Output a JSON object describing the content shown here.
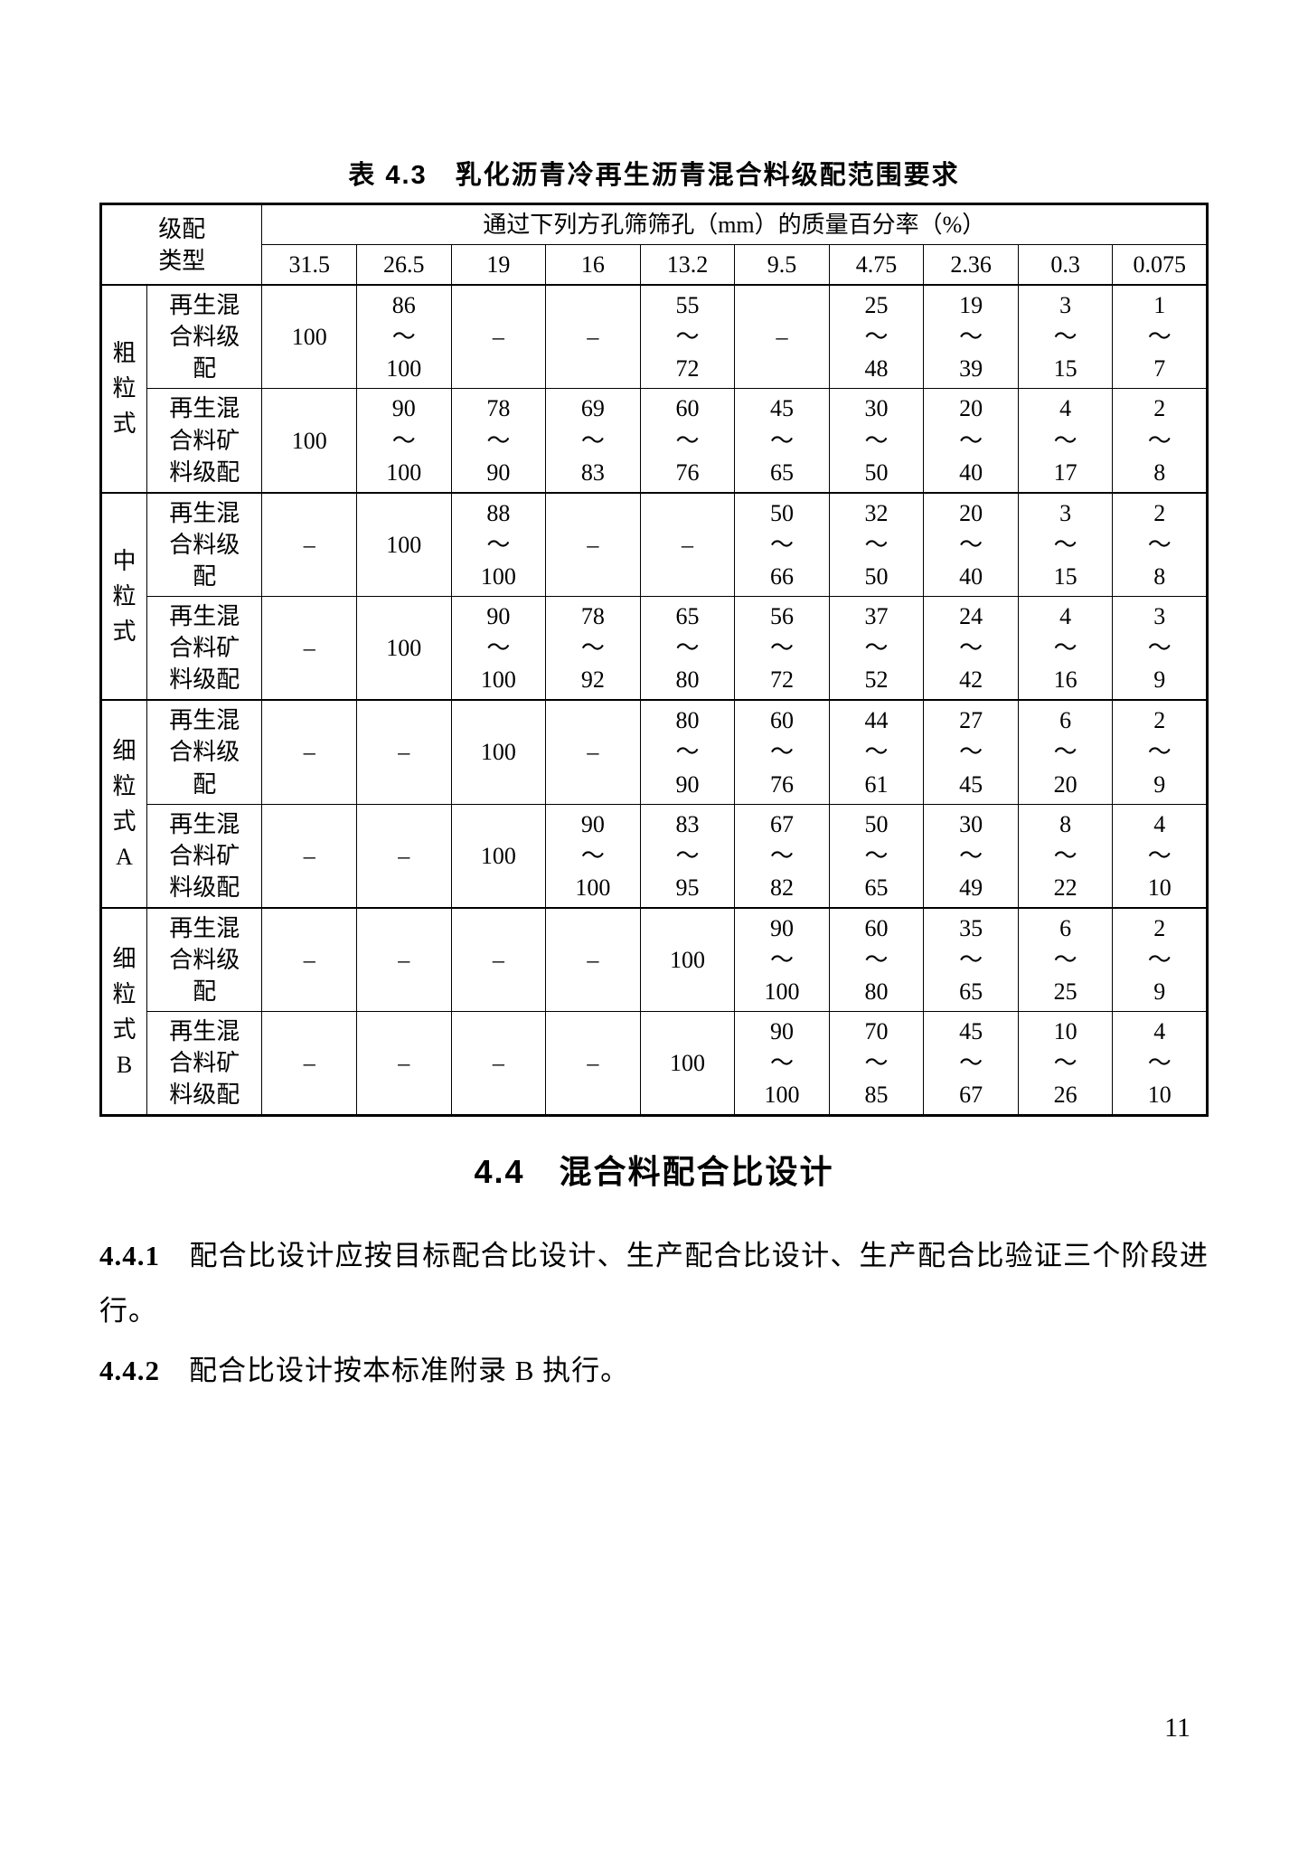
{
  "tableTitle": "表 4.3　乳化沥青冷再生沥青混合料级配范围要求",
  "header": {
    "gradationType": "级配\n类型",
    "sieveHeader": "通过下列方孔筛筛孔（mm）的质量百分率（%）",
    "sieves": [
      "31.5",
      "26.5",
      "19",
      "16",
      "13.2",
      "9.5",
      "4.75",
      "2.36",
      "0.3",
      "0.075"
    ]
  },
  "groups": [
    {
      "label": "粗粒式",
      "rows": [
        {
          "sub": "再生混合料级配",
          "cells": [
            "100",
            "86\n～\n100",
            "–",
            "–",
            "55\n～\n72",
            "–",
            "25\n～\n48",
            "19\n～\n39",
            "3\n～\n15",
            "1\n～\n7"
          ]
        },
        {
          "sub": "再生混合料矿料级配",
          "cells": [
            "100",
            "90\n～\n100",
            "78\n～\n90",
            "69\n～\n83",
            "60\n～\n76",
            "45\n～\n65",
            "30\n～\n50",
            "20\n～\n40",
            "4\n～\n17",
            "2\n～\n8"
          ]
        }
      ]
    },
    {
      "label": "中粒式",
      "rows": [
        {
          "sub": "再生混合料级配",
          "cells": [
            "–",
            "100",
            "88\n～\n100",
            "–",
            "–",
            "50\n～\n66",
            "32\n～\n50",
            "20\n～\n40",
            "3\n～\n15",
            "2\n～\n8"
          ]
        },
        {
          "sub": "再生混合料矿料级配",
          "cells": [
            "–",
            "100",
            "90\n～\n100",
            "78\n～\n92",
            "65\n～\n80",
            "56\n～\n72",
            "37\n～\n52",
            "24\n～\n42",
            "4\n～\n16",
            "3\n～\n9"
          ]
        }
      ]
    },
    {
      "label": "细粒式A",
      "rows": [
        {
          "sub": "再生混合料级配",
          "cells": [
            "–",
            "–",
            "100",
            "–",
            "80\n～\n90",
            "60\n～\n76",
            "44\n～\n61",
            "27\n～\n45",
            "6\n～\n20",
            "2\n～\n9"
          ]
        },
        {
          "sub": "再生混合料矿料级配",
          "cells": [
            "–",
            "–",
            "100",
            "90\n～\n100",
            "83\n～\n95",
            "67\n～\n82",
            "50\n～\n65",
            "30\n～\n49",
            "8\n～\n22",
            "4\n～\n10"
          ]
        }
      ]
    },
    {
      "label": "细粒式B",
      "rows": [
        {
          "sub": "再生混合料级配",
          "cells": [
            "–",
            "–",
            "–",
            "–",
            "100",
            "90\n～\n100",
            "60\n～\n80",
            "35\n～\n65",
            "6\n～\n25",
            "2\n～\n9"
          ]
        },
        {
          "sub": "再生混合料矿料级配",
          "cells": [
            "–",
            "–",
            "–",
            "–",
            "100",
            "90\n～\n100",
            "70\n～\n85",
            "45\n～\n67",
            "10\n～\n26",
            "4\n～\n10"
          ]
        }
      ]
    }
  ],
  "sectionTitle": "4.4　混合料配合比设计",
  "paragraphs": [
    {
      "num": "4.4.1",
      "text": "配合比设计应按目标配合比设计、生产配合比设计、生产配合比验证三个阶段进行。"
    },
    {
      "num": "4.4.2",
      "text": "配合比设计按本标准附录 B 执行。"
    }
  ],
  "pageNumber": "11"
}
